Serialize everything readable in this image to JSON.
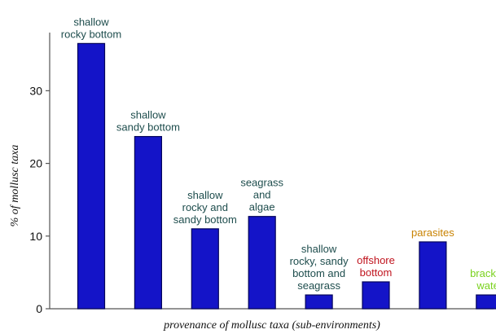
{
  "chart_data": {
    "type": "bar",
    "xlabel": "provenance of mollusc taxa (sub-environments)",
    "ylabel": "% of mollusc taxa",
    "ylim": [
      0,
      38
    ],
    "yticks": [
      0,
      10,
      20,
      30
    ],
    "grid": false,
    "bar_color": "#1414c8",
    "categories": [
      {
        "label": [
          "shallow",
          "rocky bottom"
        ],
        "value": 36.5,
        "color": "#1e4d4d"
      },
      {
        "label": [
          "shallow",
          "sandy bottom"
        ],
        "value": 23.7,
        "color": "#1e4d4d"
      },
      {
        "label": [
          "shallow",
          "rocky and",
          "sandy bottom"
        ],
        "value": 11.0,
        "color": "#1e4d4d"
      },
      {
        "label": [
          "seagrass",
          "and",
          "algae"
        ],
        "value": 12.7,
        "color": "#1e4d4d"
      },
      {
        "label": [
          "shallow",
          "rocky, sandy",
          "bottom and",
          "seagrass"
        ],
        "value": 1.9,
        "color": "#1e4d4d"
      },
      {
        "label": [
          "offshore",
          "bottom"
        ],
        "value": 3.7,
        "color": "#c0141e"
      },
      {
        "label": [
          "parasites"
        ],
        "value": 9.2,
        "color": "#c88200"
      },
      {
        "label": [
          "brackish",
          "water"
        ],
        "value": 1.9,
        "color": "#7ad21e"
      }
    ]
  }
}
